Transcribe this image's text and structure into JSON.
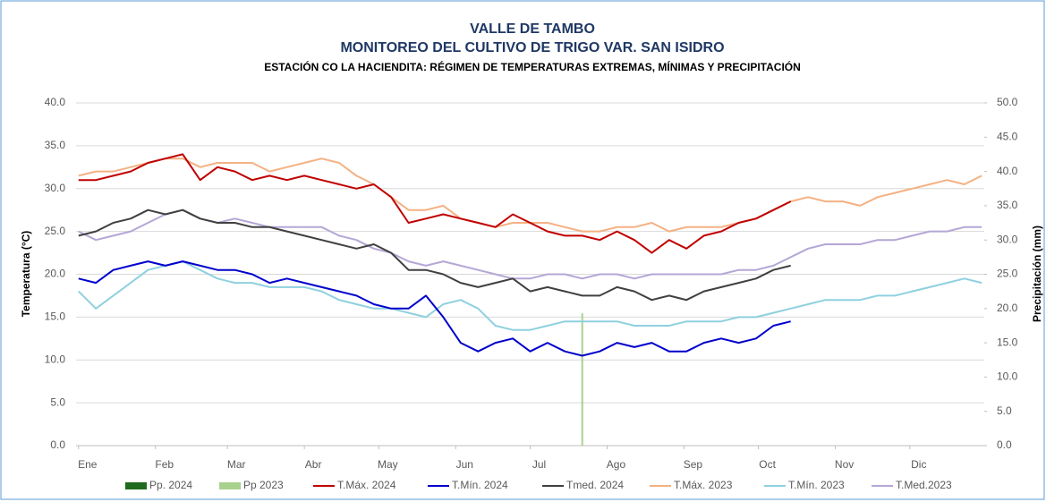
{
  "chart_data": {
    "type": "line",
    "title": "VALLE DE TAMBO",
    "subtitle": "MONITOREO DEL CULTIVO DE TRIGO VAR. SAN ISIDRO",
    "subtitle2": "ESTACIÓN CO LA HACIENDITA: RÉGIMEN DE TEMPERATURAS EXTREMAS, MÍNIMAS Y PRECIPITACIÓN",
    "y_label": "Temperatura (°C)",
    "y2_label": "Precipitación (mm)",
    "grid": true,
    "legend": "bottom",
    "x": [
      1,
      8,
      15,
      22,
      29,
      36,
      43,
      50,
      57,
      64,
      71,
      78,
      85,
      92,
      99,
      106,
      113,
      120,
      127,
      134,
      141,
      148,
      155,
      162,
      169,
      176,
      183,
      190,
      197,
      204,
      211,
      218,
      225,
      232,
      239,
      246,
      253,
      260,
      267,
      274,
      281,
      288,
      295,
      302,
      309,
      316,
      323,
      330,
      337,
      344,
      351,
      358,
      365
    ],
    "xlim": [
      0,
      366
    ],
    "xticks": [
      {
        "value": 1,
        "label": "Ene"
      },
      {
        "value": 32,
        "label": "Feb"
      },
      {
        "value": 61,
        "label": "Mar"
      },
      {
        "value": 92,
        "label": "Abr"
      },
      {
        "value": 122,
        "label": "May"
      },
      {
        "value": 153,
        "label": "Jun"
      },
      {
        "value": 183,
        "label": "Jul"
      },
      {
        "value": 214,
        "label": "Ago"
      },
      {
        "value": 245,
        "label": "Sep"
      },
      {
        "value": 275,
        "label": "Oct"
      },
      {
        "value": 306,
        "label": "Nov"
      },
      {
        "value": 336,
        "label": "Dic"
      }
    ],
    "ylim": [
      0,
      40
    ],
    "yticks": [
      {
        "value": 0,
        "label": "0.0"
      },
      {
        "value": 5,
        "label": "5.0"
      },
      {
        "value": 10,
        "label": "10.0"
      },
      {
        "value": 15,
        "label": "15.0"
      },
      {
        "value": 20,
        "label": "20.0"
      },
      {
        "value": 25,
        "label": "25.0"
      },
      {
        "value": 30,
        "label": "30.0"
      },
      {
        "value": 35,
        "label": "35.0"
      },
      {
        "value": 40,
        "label": "40.0"
      }
    ],
    "y2lim": [
      0,
      50
    ],
    "y2ticks": [
      {
        "value": 0,
        "label": "0.0"
      },
      {
        "value": 5,
        "label": "5.0"
      },
      {
        "value": 10,
        "label": "10.0"
      },
      {
        "value": 15,
        "label": "15.0"
      },
      {
        "value": 20,
        "label": "20.0"
      },
      {
        "value": 25,
        "label": "25.0"
      },
      {
        "value": 30,
        "label": "30.0"
      },
      {
        "value": 35,
        "label": "35.0"
      },
      {
        "value": 40,
        "label": "40.0"
      },
      {
        "value": 45,
        "label": "45.0"
      },
      {
        "value": 50,
        "label": "50.0"
      }
    ],
    "series": [
      {
        "name": "Pp. 2024",
        "type": "bar",
        "axis": "y2",
        "color": "#1e6b1e",
        "values": [
          0,
          0,
          0,
          0,
          0,
          0,
          0,
          0,
          0,
          0,
          0,
          0,
          0,
          0,
          0,
          0,
          0,
          0,
          0,
          0,
          0,
          0,
          0,
          0,
          0,
          0,
          0,
          0,
          0,
          0,
          0,
          0,
          0,
          0,
          0,
          0,
          0,
          0,
          0,
          0,
          0,
          0,
          null,
          null,
          null,
          null,
          null,
          null,
          null,
          null,
          null,
          null,
          null
        ]
      },
      {
        "name": "Pp 2023",
        "type": "bar",
        "axis": "y2",
        "color": "#a9d18e",
        "values": [
          0,
          0,
          0,
          0,
          0,
          0,
          0,
          0,
          0,
          0,
          0,
          0,
          0,
          0,
          0,
          0,
          0,
          0,
          0,
          0,
          0,
          0,
          0,
          0,
          0,
          0,
          0,
          0,
          0,
          19.3,
          0,
          0,
          0,
          0,
          0,
          0,
          0,
          0,
          0,
          0,
          0,
          0,
          0,
          0,
          0,
          0,
          0,
          0,
          0,
          0,
          0,
          0,
          0
        ]
      },
      {
        "name": "T.Máx. 2024",
        "type": "line",
        "color": "#c00000",
        "values": [
          31,
          31,
          31.5,
          32,
          33,
          33.5,
          34,
          31,
          32.5,
          32,
          31,
          31.5,
          31,
          31.5,
          31,
          30.5,
          30,
          30.5,
          29,
          26,
          26.5,
          27,
          26.5,
          26,
          25.5,
          27,
          26,
          25,
          24.5,
          24.5,
          24,
          25,
          24,
          22.5,
          24,
          23,
          24.5,
          25,
          26,
          26.5,
          27.5,
          28.5,
          null,
          null,
          null,
          null,
          null,
          null,
          null,
          null,
          null,
          null,
          null
        ]
      },
      {
        "name": "T.Mín. 2024",
        "type": "line",
        "color": "#0000cc",
        "values": [
          19.5,
          19,
          20.5,
          21,
          21.5,
          21,
          21.5,
          21,
          20.5,
          20.5,
          20,
          19,
          19.5,
          19,
          18.5,
          18,
          17.5,
          16.5,
          16,
          16,
          17.5,
          15,
          12,
          11,
          12,
          12.5,
          11,
          12,
          11,
          10.5,
          11,
          12,
          11.5,
          12,
          11,
          11,
          12,
          12.5,
          12,
          12.5,
          14,
          14.5,
          null,
          null,
          null,
          null,
          null,
          null,
          null,
          null,
          null,
          null,
          null
        ]
      },
      {
        "name": "Tmed. 2024",
        "type": "line",
        "color": "#404040",
        "values": [
          24.5,
          25,
          26,
          26.5,
          27.5,
          27,
          27.5,
          26.5,
          26,
          26,
          25.5,
          25.5,
          25,
          24.5,
          24,
          23.5,
          23,
          23.5,
          22.5,
          20.5,
          20.5,
          20,
          19,
          18.5,
          19,
          19.5,
          18,
          18.5,
          18,
          17.5,
          17.5,
          18.5,
          18,
          17,
          17.5,
          17,
          18,
          18.5,
          19,
          19.5,
          20.5,
          21,
          null,
          null,
          null,
          null,
          null,
          null,
          null,
          null,
          null,
          null,
          null
        ]
      },
      {
        "name": "T.Máx. 2023",
        "type": "line",
        "color": "#f4b183",
        "values": [
          31.5,
          32,
          32,
          32.5,
          33,
          33.5,
          33.5,
          32.5,
          33,
          33,
          33,
          32,
          32.5,
          33,
          33.5,
          33,
          31.5,
          30.5,
          29,
          27.5,
          27.5,
          28,
          26.5,
          26,
          25.5,
          26,
          26,
          26,
          25.5,
          25,
          25,
          25.5,
          25.5,
          26,
          25,
          25.5,
          25.5,
          25.5,
          26,
          26.5,
          27.5,
          28.5,
          29,
          28.5,
          28.5,
          28,
          29,
          29.5,
          30,
          30.5,
          31,
          30.5,
          31.5
        ]
      },
      {
        "name": "T.Mín. 2023",
        "type": "line",
        "color": "#8fd0df",
        "values": [
          18,
          16,
          17.5,
          19,
          20.5,
          21,
          21.5,
          20.5,
          19.5,
          19,
          19,
          18.5,
          18.5,
          18.5,
          18,
          17,
          16.5,
          16,
          16,
          15.5,
          15,
          16.5,
          17,
          16,
          14,
          13.5,
          13.5,
          14,
          14.5,
          14.5,
          14.5,
          14.5,
          14,
          14,
          14,
          14.5,
          14.5,
          14.5,
          15,
          15,
          15.5,
          16,
          16.5,
          17,
          17,
          17,
          17.5,
          17.5,
          18,
          18.5,
          19,
          19.5,
          19
        ]
      },
      {
        "name": "T.Med.2023",
        "type": "line",
        "color": "#b4a7d6",
        "values": [
          25,
          24,
          24.5,
          25,
          26,
          27,
          27.5,
          26.5,
          26,
          26.5,
          26,
          25.5,
          25.5,
          25.5,
          25.5,
          24.5,
          24,
          23,
          22.5,
          21.5,
          21,
          21.5,
          21,
          20.5,
          20,
          19.5,
          19.5,
          20,
          20,
          19.5,
          20,
          20,
          19.5,
          20,
          20,
          20,
          20,
          20,
          20.5,
          20.5,
          21,
          22,
          23,
          23.5,
          23.5,
          23.5,
          24,
          24,
          24.5,
          25,
          25,
          25.5,
          25.5
        ]
      }
    ]
  }
}
